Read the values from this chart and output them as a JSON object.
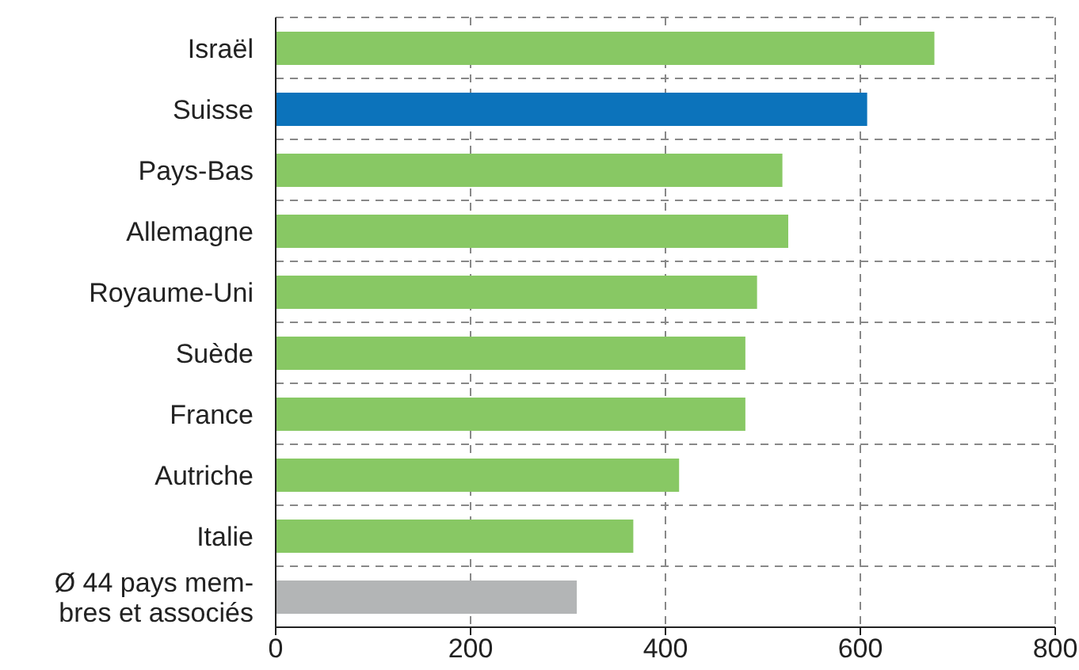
{
  "chart_data": {
    "type": "bar",
    "orientation": "horizontal",
    "categories": [
      "Israël",
      "Suisse",
      "Pays-Bas",
      "Allemagne",
      "Royaume-Uni",
      "Suède",
      "France",
      "Autriche",
      "Italie",
      "Ø 44 pays mem-\nbres et associés"
    ],
    "values": [
      676,
      607,
      520,
      526,
      494,
      482,
      482,
      414,
      367,
      309
    ],
    "colors": [
      "#88c864",
      "#0c73bb",
      "#88c864",
      "#88c864",
      "#88c864",
      "#88c864",
      "#88c864",
      "#88c864",
      "#88c864",
      "#b3b5b6"
    ],
    "xlim": [
      0,
      800
    ],
    "xticks": [
      0,
      200,
      400,
      600,
      800
    ],
    "grid": true,
    "line_style": "dashed"
  }
}
